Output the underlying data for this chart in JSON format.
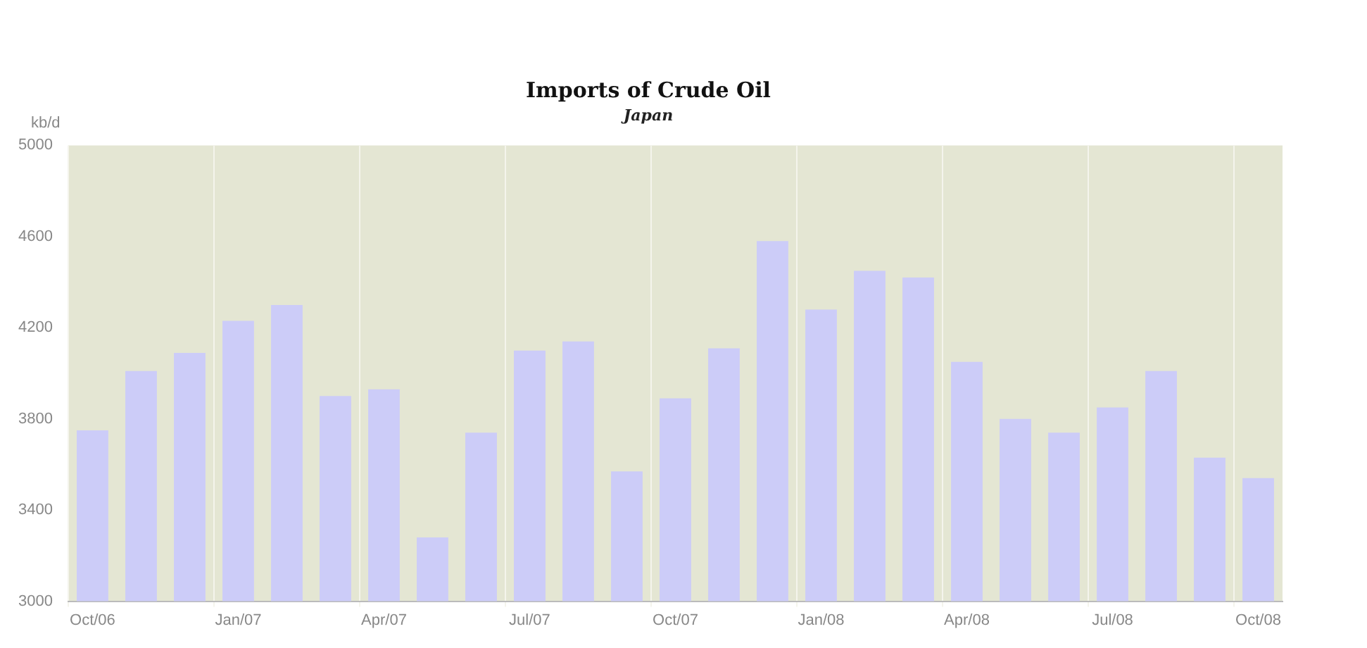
{
  "chart_data": {
    "type": "bar",
    "title": "Imports of Crude Oil",
    "subtitle": "Japan",
    "ylabel": "kb/d",
    "categories": [
      "Oct/06",
      null,
      null,
      "Jan/07",
      null,
      null,
      "Apr/07",
      null,
      null,
      "Jul/07",
      null,
      null,
      "Oct/07",
      null,
      null,
      "Jan/08",
      null,
      null,
      "Apr/08",
      null,
      null,
      "Jul/08",
      null,
      null,
      "Oct/08"
    ],
    "values": [
      3750,
      4010,
      4090,
      4230,
      4300,
      3900,
      3930,
      3280,
      3740,
      4100,
      4140,
      3570,
      3890,
      4110,
      4580,
      4280,
      4450,
      4420,
      4050,
      3800,
      3740,
      3850,
      4010,
      3630,
      3540
    ],
    "color": "#ccccf8",
    "ylim": [
      3000,
      5000
    ],
    "yticks": [
      3000,
      3400,
      3800,
      4200,
      4600,
      5000
    ],
    "grid": "x",
    "legend": false
  }
}
